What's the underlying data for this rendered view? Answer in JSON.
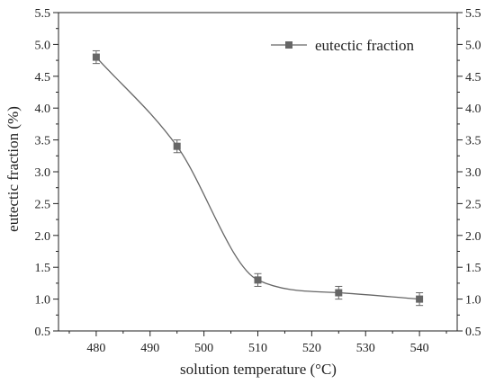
{
  "chart_data": {
    "type": "line",
    "xlabel": "solution temperature (°C)",
    "ylabel": "eutectic fraction (%)",
    "xlim": [
      473,
      547
    ],
    "ylim": [
      0.5,
      5.5
    ],
    "x_ticks": [
      480,
      490,
      500,
      510,
      520,
      530,
      540
    ],
    "y_ticks": [
      0.5,
      1.0,
      1.5,
      2.0,
      2.5,
      3.0,
      3.5,
      4.0,
      4.5,
      5.0,
      5.5
    ],
    "y_ticks_right": true,
    "grid": false,
    "legend_position": "top-right",
    "colors": {
      "series": "#666666",
      "axis": "#222222"
    },
    "series": [
      {
        "name": "eutectic fraction",
        "marker": "square",
        "line": "smooth",
        "x": [
          480,
          495,
          510,
          525,
          540
        ],
        "y": [
          4.8,
          3.4,
          1.3,
          1.1,
          1.0
        ],
        "error": [
          0.1,
          0.1,
          0.1,
          0.1,
          0.1
        ]
      }
    ]
  }
}
